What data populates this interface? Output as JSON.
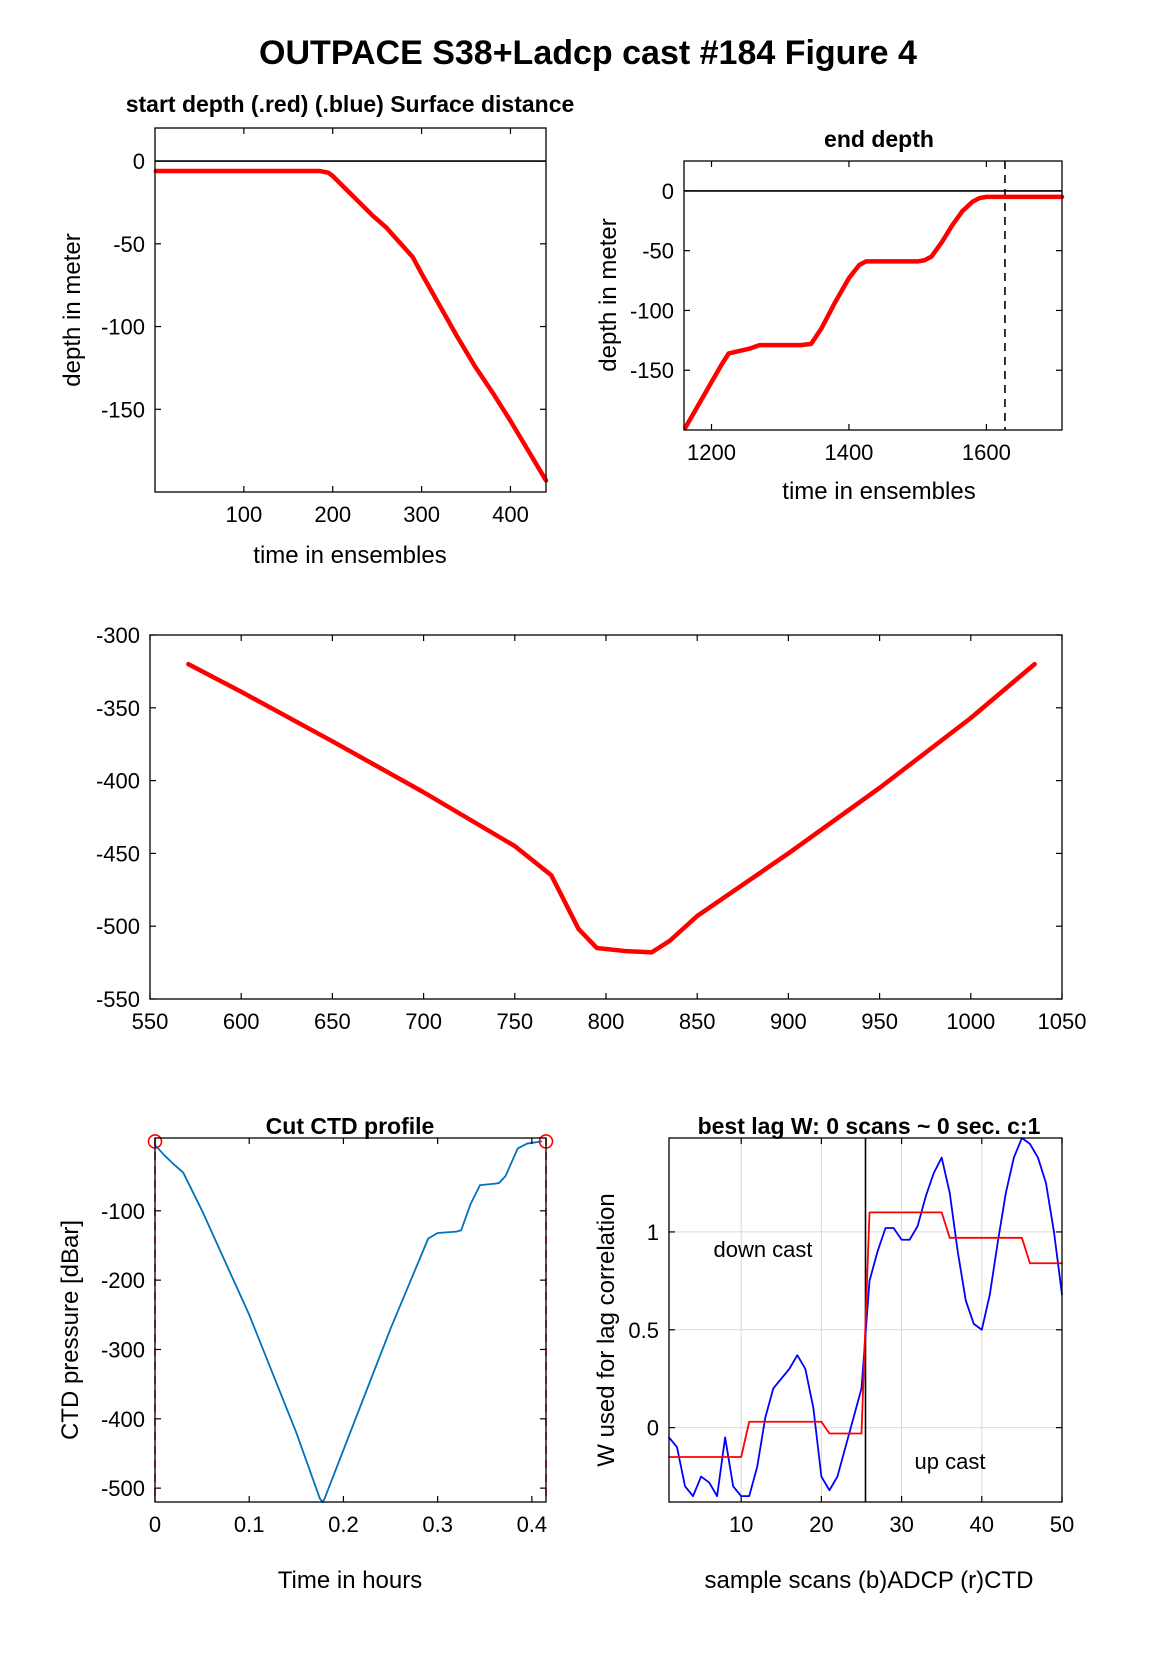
{
  "figure": {
    "suptitle": "OUTPACE S38+Ladcp cast #184   Figure 4"
  },
  "colors": {
    "red": "#ff0000",
    "blue_ctd": "#0072bd",
    "blue_adcp": "#0000ff",
    "grid": "#d9d9d9",
    "axis": "#000000"
  },
  "chart_data": [
    {
      "id": "start_depth",
      "type": "line",
      "title": "start depth (.red) (.blue) Surface distance",
      "xlabel": "time in ensembles",
      "ylabel": "depth in meter",
      "xlim": [
        0,
        440
      ],
      "ylim": [
        -200,
        20
      ],
      "xticks": [
        100,
        200,
        300,
        400
      ],
      "yticks": [
        0,
        -50,
        -100,
        -150
      ],
      "grid": false,
      "reference_lines": [
        {
          "orientation": "horizontal",
          "value": 0,
          "style": "solid"
        }
      ],
      "series": [
        {
          "color": "red",
          "style": "thick",
          "x": [
            1,
            60,
            120,
            185,
            195,
            200,
            215,
            230,
            245,
            260,
            270,
            280,
            290,
            300,
            320,
            340,
            360,
            380,
            400,
            420,
            440
          ],
          "y": [
            -6,
            -6,
            -6,
            -6,
            -7,
            -9,
            -17,
            -25,
            -33,
            -40,
            -46,
            -52,
            -58,
            -68,
            -87,
            -106,
            -124,
            -140,
            -157,
            -175,
            -193
          ]
        }
      ]
    },
    {
      "id": "end_depth",
      "type": "line",
      "title": "end depth",
      "xlabel": "time in ensembles",
      "ylabel": "depth in meter",
      "xlim": [
        1160,
        1710
      ],
      "ylim": [
        -200,
        25
      ],
      "xticks": [
        1200,
        1400,
        1600
      ],
      "yticks": [
        0,
        -50,
        -100,
        -150
      ],
      "grid": false,
      "reference_lines": [
        {
          "orientation": "horizontal",
          "value": 0,
          "style": "solid"
        },
        {
          "orientation": "vertical",
          "value": 1627,
          "style": "dashed"
        }
      ],
      "series": [
        {
          "color": "red",
          "style": "thick",
          "x": [
            1162,
            1180,
            1200,
            1215,
            1225,
            1240,
            1255,
            1270,
            1300,
            1330,
            1345,
            1360,
            1380,
            1400,
            1415,
            1425,
            1440,
            1480,
            1500,
            1510,
            1520,
            1535,
            1550,
            1565,
            1580,
            1590,
            1600,
            1620,
            1650,
            1710
          ],
          "y": [
            -198,
            -180,
            -160,
            -145,
            -136,
            -134,
            -132,
            -129,
            -129,
            -129,
            -128,
            -115,
            -93,
            -73,
            -62,
            -59,
            -59,
            -59,
            -59,
            -58,
            -55,
            -43,
            -29,
            -17,
            -9,
            -6,
            -5,
            -5,
            -5,
            -5
          ]
        }
      ]
    },
    {
      "id": "profile",
      "type": "line",
      "title": "",
      "xlabel": "",
      "ylabel": "",
      "xlim": [
        550,
        1050
      ],
      "ylim": [
        -550,
        -300
      ],
      "xticks": [
        550,
        600,
        650,
        700,
        750,
        800,
        850,
        900,
        950,
        1000,
        1050
      ],
      "yticks": [
        -300,
        -350,
        -400,
        -450,
        -500,
        -550
      ],
      "grid": false,
      "series": [
        {
          "color": "red",
          "style": "thick",
          "x": [
            571,
            600,
            650,
            700,
            750,
            770,
            785,
            795,
            810,
            825,
            835,
            850,
            900,
            950,
            1000,
            1035
          ],
          "y": [
            -320,
            -339,
            -373,
            -408,
            -445,
            -465,
            -502,
            -515,
            -517,
            -518,
            -510,
            -493,
            -450,
            -405,
            -357,
            -320
          ]
        }
      ]
    },
    {
      "id": "cut_ctd",
      "type": "line",
      "title": "Cut CTD profile",
      "xlabel": "Time in hours",
      "ylabel": "CTD pressure [dBar]",
      "xlim": [
        0,
        0.415
      ],
      "ylim": [
        -520,
        5
      ],
      "xticks": [
        0,
        0.1,
        0.2,
        0.3,
        0.4
      ],
      "yticks": [
        -100,
        -200,
        -300,
        -400,
        -500
      ],
      "grid": false,
      "reference_lines": [
        {
          "orientation": "vertical",
          "value": 0,
          "style": "dashed",
          "color": "red"
        },
        {
          "orientation": "vertical",
          "value": 0.415,
          "style": "dashed",
          "color": "red"
        }
      ],
      "markers": [
        {
          "x": 0,
          "y": 0,
          "shape": "circle",
          "color": "red"
        },
        {
          "x": 0.415,
          "y": 0,
          "shape": "circle",
          "color": "red"
        }
      ],
      "series": [
        {
          "color": "blue_ctd",
          "style": "thin",
          "x": [
            0,
            0.01,
            0.02,
            0.03,
            0.05,
            0.1,
            0.15,
            0.175,
            0.178,
            0.18,
            0.2,
            0.25,
            0.29,
            0.3,
            0.32,
            0.325,
            0.335,
            0.345,
            0.36,
            0.365,
            0.372,
            0.385,
            0.395,
            0.41
          ],
          "y": [
            -5,
            -20,
            -33,
            -45,
            -100,
            -250,
            -420,
            -515,
            -520,
            -515,
            -445,
            -270,
            -140,
            -132,
            -130,
            -128,
            -90,
            -63,
            -61,
            -60,
            -50,
            -10,
            -3,
            0
          ]
        }
      ]
    },
    {
      "id": "best_lag",
      "type": "line",
      "title": "best lag W: 0 scans ~ 0 sec.  c:1",
      "xlabel": "sample scans (b)ADCP (r)CTD",
      "ylabel": "W used for lag correlation",
      "xlim": [
        1,
        50
      ],
      "ylim": [
        -0.38,
        1.48
      ],
      "xticks": [
        10,
        20,
        30,
        40,
        50
      ],
      "yticks": [
        0,
        0.5,
        1
      ],
      "grid": true,
      "annotations": [
        "down cast",
        "up cast"
      ],
      "reference_lines": [
        {
          "orientation": "vertical",
          "value": 25.5,
          "style": "solid"
        }
      ],
      "series": [
        {
          "color": "blue_adcp",
          "style": "thin",
          "x": [
            1,
            2,
            3,
            4,
            5,
            6,
            7,
            8,
            9,
            10,
            11,
            12,
            13,
            14,
            15,
            16,
            17,
            18,
            19,
            20,
            21,
            22,
            23,
            24,
            25,
            26,
            27,
            28,
            29,
            30,
            31,
            32,
            33,
            34,
            35,
            36,
            37,
            38,
            39,
            40,
            41,
            42,
            43,
            44,
            45,
            46,
            47,
            48,
            49,
            50
          ],
          "y": [
            -0.05,
            -0.1,
            -0.3,
            -0.35,
            -0.25,
            -0.28,
            -0.35,
            -0.05,
            -0.3,
            -0.35,
            -0.35,
            -0.2,
            0.05,
            0.2,
            0.25,
            0.3,
            0.37,
            0.3,
            0.1,
            -0.25,
            -0.32,
            -0.25,
            -0.1,
            0.05,
            0.2,
            0.75,
            0.9,
            1.02,
            1.02,
            0.96,
            0.96,
            1.03,
            1.18,
            1.3,
            1.38,
            1.2,
            0.9,
            0.65,
            0.53,
            0.5,
            0.68,
            0.95,
            1.2,
            1.38,
            1.48,
            1.45,
            1.38,
            1.25,
            1.0,
            0.68
          ]
        },
        {
          "color": "red",
          "style": "thin",
          "x": [
            1,
            10,
            11,
            20,
            21,
            25,
            26,
            35,
            36,
            45,
            46,
            50
          ],
          "y": [
            -0.15,
            -0.15,
            0.03,
            0.03,
            -0.03,
            -0.03,
            1.1,
            1.1,
            0.97,
            0.97,
            0.84,
            0.84
          ]
        }
      ]
    }
  ]
}
